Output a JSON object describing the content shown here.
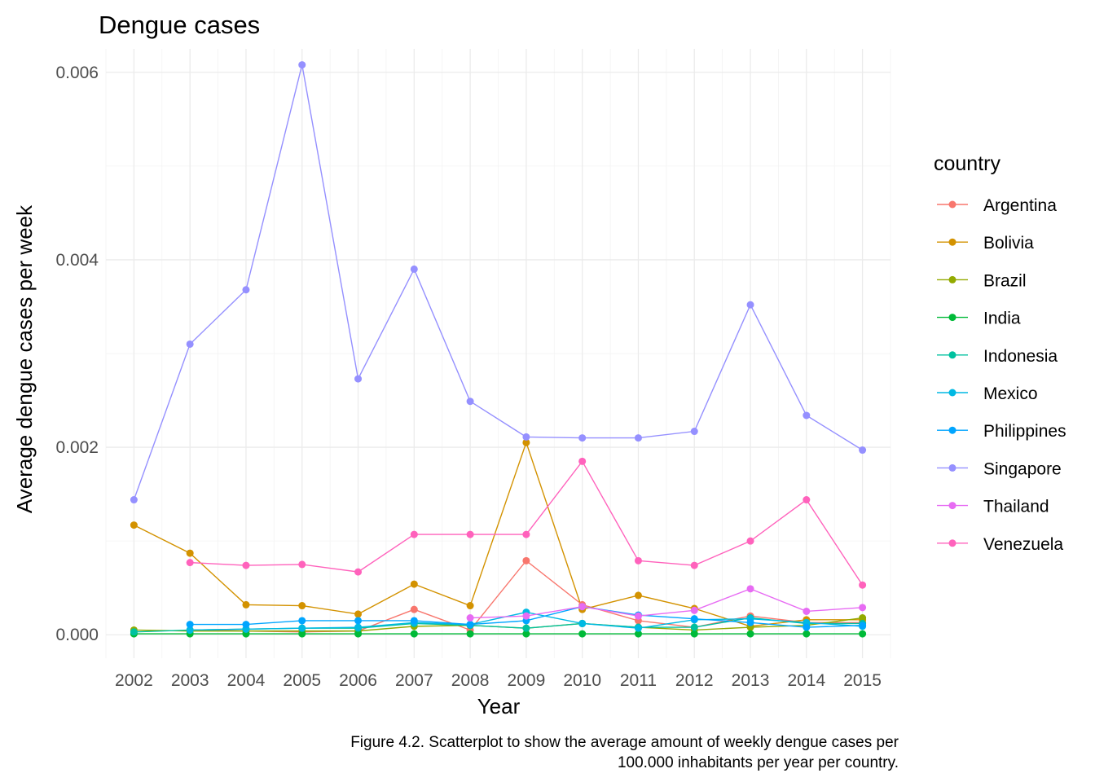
{
  "chart_data": {
    "type": "line",
    "title": "Dengue cases",
    "xlabel": "Year",
    "ylabel": "Average dengue cases per week",
    "caption": [
      "Figure 4.2. Scatterplot to show the average amount of weekly dengue cases per",
      "100.000 inhabitants per year per country."
    ],
    "x": [
      2002,
      2003,
      2004,
      2005,
      2006,
      2007,
      2008,
      2009,
      2010,
      2011,
      2012,
      2013,
      2014,
      2015
    ],
    "x_tick_labels": [
      "2002",
      "2003",
      "2004",
      "2005",
      "2006",
      "2007",
      "2008",
      "2009",
      "2010",
      "2011",
      "2012",
      "2013",
      "2014",
      "2015"
    ],
    "y_ticks": [
      0,
      0.002,
      0.004,
      0.006
    ],
    "y_tick_labels": [
      "0.000",
      "0.002",
      "0.004",
      "0.006"
    ],
    "ylim": [
      -0.00025,
      0.00625
    ],
    "grid": true,
    "legend_title": "country",
    "legend_position": "right",
    "series": [
      {
        "name": "Argentina",
        "color": "#F8766D",
        "values": [
          null,
          5e-05,
          4e-05,
          3e-05,
          4e-05,
          0.00027,
          5e-05,
          0.00079,
          0.00032,
          0.00015,
          8e-05,
          0.0002,
          0.00013,
          0.00013
        ]
      },
      {
        "name": "Bolivia",
        "color": "#D39200",
        "values": [
          0.00117,
          0.00087,
          0.00032,
          0.00031,
          0.00022,
          0.00054,
          0.00031,
          0.00205,
          0.00027,
          0.00042,
          0.00028,
          9e-05,
          0.00016,
          0.00016
        ]
      },
      {
        "name": "Brazil",
        "color": "#93AA00",
        "values": [
          5e-05,
          4e-05,
          4e-05,
          4e-05,
          4e-05,
          9e-05,
          0.0001,
          7e-05,
          0.00012,
          8e-05,
          5e-05,
          8e-05,
          0.0001,
          0.00018
        ]
      },
      {
        "name": "India",
        "color": "#00BA38",
        "values": [
          1e-05,
          1e-05,
          1e-05,
          1e-05,
          1e-05,
          1e-05,
          1e-05,
          1e-05,
          1e-05,
          1e-05,
          1e-05,
          1e-05,
          1e-05,
          1e-05
        ]
      },
      {
        "name": "Indonesia",
        "color": "#00C19F",
        "values": [
          3e-05,
          5e-05,
          6e-05,
          7e-05,
          7e-05,
          0.00012,
          0.0001,
          7e-05,
          0.00012,
          8e-05,
          8e-05,
          0.00018,
          0.00012,
          0.00012
        ]
      },
      {
        "name": "Mexico",
        "color": "#00B9E3",
        "values": [
          null,
          5e-05,
          6e-05,
          7e-05,
          8e-05,
          0.00013,
          0.00011,
          0.00024,
          0.00012,
          7e-05,
          0.00016,
          0.00017,
          0.00013,
          9e-05
        ]
      },
      {
        "name": "Philippines",
        "color": "#00A5FF",
        "values": [
          null,
          0.00011,
          0.00011,
          0.00015,
          0.00015,
          0.00015,
          0.00011,
          0.00015,
          0.0003,
          0.00021,
          0.00017,
          0.00013,
          8e-05,
          0.0001
        ]
      },
      {
        "name": "Singapore",
        "color": "#9590FF",
        "values": [
          0.00144,
          0.0031,
          0.00368,
          0.00608,
          0.00273,
          0.0039,
          0.00249,
          0.00211,
          0.0021,
          0.0021,
          0.00217,
          0.00352,
          0.00234,
          0.00197
        ]
      },
      {
        "name": "Thailand",
        "color": "#E76BF3",
        "values": [
          null,
          null,
          null,
          null,
          null,
          null,
          0.00018,
          0.0002,
          0.0003,
          0.0002,
          0.00026,
          0.00049,
          0.00025,
          0.00029
        ]
      },
      {
        "name": "Venezuela",
        "color": "#FF62BC",
        "values": [
          null,
          0.00077,
          0.00074,
          0.00075,
          0.00067,
          0.00107,
          0.00107,
          0.00107,
          0.00185,
          0.00079,
          0.00074,
          0.001,
          0.00144,
          0.00053
        ]
      }
    ]
  }
}
